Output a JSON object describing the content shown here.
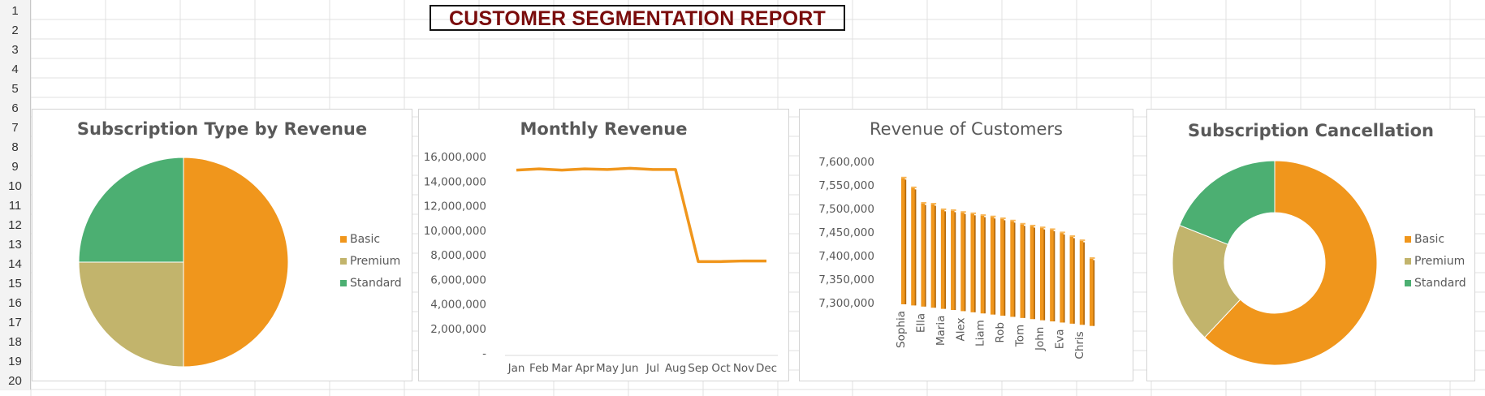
{
  "report_title": "CUSTOMER SEGMENTATION REPORT",
  "row_numbers": [
    "1",
    "2",
    "3",
    "4",
    "5",
    "6",
    "7",
    "8",
    "9",
    "10",
    "11",
    "12",
    "13",
    "14",
    "15",
    "16",
    "17",
    "18",
    "19",
    "20"
  ],
  "colors": {
    "basic": "#F0961C",
    "premium": "#C2B46C",
    "standard": "#4CAF72",
    "line": "#F0961C",
    "bar": "#F0961C",
    "title_text": "#7A0C0C"
  },
  "chart_data": [
    {
      "type": "pie",
      "title": "Subscription Type by Revenue",
      "legend_position": "right",
      "categories": [
        "Basic",
        "Premium",
        "Standard"
      ],
      "values": [
        50,
        25,
        25
      ]
    },
    {
      "type": "line",
      "title": "Monthly Revenue",
      "categories": [
        "Jan",
        "Feb",
        "Mar",
        "Apr",
        "May",
        "Jun",
        "Jul",
        "Aug",
        "Sep",
        "Oct",
        "Nov",
        "Dec"
      ],
      "values": [
        14900000,
        15000000,
        14900000,
        15000000,
        14950000,
        15050000,
        14950000,
        14950000,
        7450000,
        7450000,
        7500000,
        7500000
      ],
      "ylim": [
        0,
        16000000
      ],
      "yticks": [
        "-",
        "2,000,000",
        "4,000,000",
        "6,000,000",
        "8,000,000",
        "10,000,000",
        "12,000,000",
        "14,000,000",
        "16,000,000"
      ],
      "grid": false
    },
    {
      "type": "bar",
      "title": "Revenue of Customers",
      "categories": [
        "Sophia",
        "",
        "Ella",
        "",
        "Maria",
        "",
        "Alex",
        "",
        "Liam",
        "",
        "Rob",
        "",
        "Tom",
        "",
        "John",
        "",
        "Eva",
        "",
        "Chris",
        ""
      ],
      "values": [
        7565000,
        7545000,
        7513000,
        7512000,
        7501000,
        7500000,
        7497000,
        7495000,
        7492000,
        7490000,
        7487000,
        7483000,
        7477000,
        7474000,
        7471000,
        7468000,
        7462000,
        7455000,
        7447000,
        7410000
      ],
      "ylim": [
        7300000,
        7600000
      ],
      "yticks": [
        "7,300,000",
        "7,350,000",
        "7,400,000",
        "7,450,000",
        "7,500,000",
        "7,550,000",
        "7,600,000"
      ],
      "style": "3d-column"
    },
    {
      "type": "pie",
      "style": "doughnut",
      "title": "Subscription Cancellation",
      "legend_position": "right",
      "categories": [
        "Basic",
        "Premium",
        "Standard"
      ],
      "values": [
        62,
        19,
        19
      ]
    }
  ]
}
